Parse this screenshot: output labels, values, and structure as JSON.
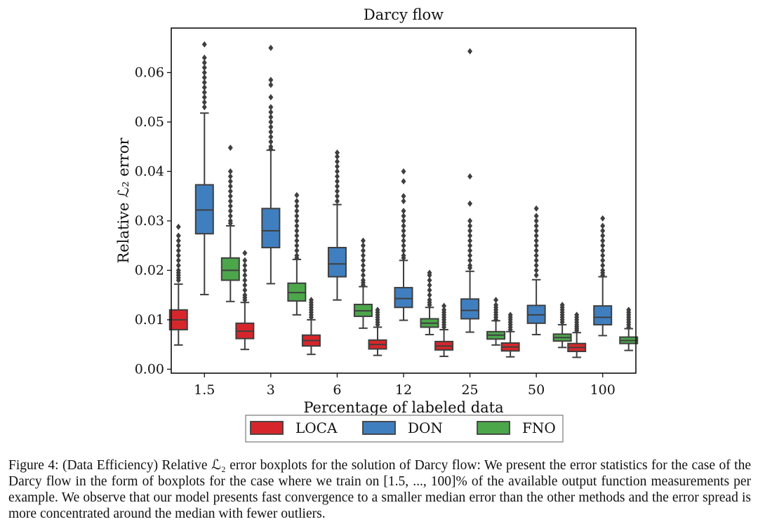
{
  "chart_data": {
    "type": "boxplot",
    "title": "Darcy flow",
    "xlabel": "Percentage of labeled data",
    "ylabel": "Relative ℒ₂ error",
    "ylim": [
      -0.0008,
      0.069
    ],
    "yticks": [
      "0.00",
      "0.01",
      "0.02",
      "0.03",
      "0.04",
      "0.05",
      "0.06"
    ],
    "ytick_values": [
      0.0,
      0.01,
      0.02,
      0.03,
      0.04,
      0.05,
      0.06
    ],
    "categories": [
      "1.5",
      "3",
      "6",
      "12",
      "25",
      "50",
      "100"
    ],
    "legend_position": "bottom-center",
    "series": [
      {
        "name": "LOCA",
        "color": "#d7262b",
        "boxes": [
          {
            "whislo": 0.0049,
            "q1": 0.008,
            "med": 0.01,
            "q3": 0.012,
            "whishi": 0.0172,
            "fliers": [
              0.018,
              0.0185,
              0.019,
              0.0195,
              0.02,
              0.021,
              0.022,
              0.023,
              0.024,
              0.025,
              0.026,
              0.027,
              0.0288
            ]
          },
          {
            "whislo": 0.004,
            "q1": 0.0062,
            "med": 0.0077,
            "q3": 0.0093,
            "whishi": 0.0135,
            "fliers": [
              0.014,
              0.0145,
              0.015,
              0.016,
              0.017,
              0.018,
              0.019,
              0.02,
              0.021,
              0.022,
              0.0235
            ]
          },
          {
            "whislo": 0.003,
            "q1": 0.0047,
            "med": 0.0058,
            "q3": 0.0069,
            "whishi": 0.01,
            "fliers": [
              0.0105,
              0.011,
              0.0115,
              0.012,
              0.0125,
              0.013,
              0.0135,
              0.014
            ]
          },
          {
            "whislo": 0.0028,
            "q1": 0.0041,
            "med": 0.005,
            "q3": 0.0059,
            "whishi": 0.0085,
            "fliers": [
              0.009,
              0.0095,
              0.01,
              0.0105,
              0.011,
              0.0115,
              0.012
            ]
          },
          {
            "whislo": 0.0026,
            "q1": 0.0039,
            "med": 0.0047,
            "q3": 0.0056,
            "whishi": 0.008,
            "fliers": [
              0.0085,
              0.009,
              0.0095,
              0.01,
              0.0105,
              0.011,
              0.0115,
              0.012,
              0.0128
            ]
          },
          {
            "whislo": 0.0025,
            "q1": 0.0037,
            "med": 0.0045,
            "q3": 0.0053,
            "whishi": 0.0076,
            "fliers": [
              0.008,
              0.0085,
              0.009,
              0.0095,
              0.01,
              0.0105,
              0.011
            ]
          },
          {
            "whislo": 0.0024,
            "q1": 0.0036,
            "med": 0.0044,
            "q3": 0.0052,
            "whishi": 0.0074,
            "fliers": [
              0.0078,
              0.0082,
              0.0086,
              0.009,
              0.0095,
              0.01,
              0.0105,
              0.011
            ]
          }
        ]
      },
      {
        "name": "DON",
        "color": "#3f7fc0",
        "boxes": [
          {
            "whislo": 0.0151,
            "q1": 0.0274,
            "med": 0.0322,
            "q3": 0.0373,
            "whishi": 0.0518,
            "fliers": [
              0.053,
              0.054,
              0.055,
              0.056,
              0.057,
              0.058,
              0.059,
              0.06,
              0.061,
              0.062,
              0.063,
              0.0657
            ]
          },
          {
            "whislo": 0.0173,
            "q1": 0.0246,
            "med": 0.028,
            "q3": 0.0325,
            "whishi": 0.0443,
            "fliers": [
              0.0445,
              0.045,
              0.046,
              0.047,
              0.048,
              0.049,
              0.05,
              0.051,
              0.052,
              0.053,
              0.055,
              0.0575,
              0.0585,
              0.065
            ]
          },
          {
            "whislo": 0.014,
            "q1": 0.0187,
            "med": 0.0213,
            "q3": 0.0246,
            "whishi": 0.0333,
            "fliers": [
              0.034,
              0.035,
              0.036,
              0.037,
              0.038,
              0.039,
              0.04,
              0.041,
              0.042,
              0.043,
              0.0438
            ]
          },
          {
            "whislo": 0.0099,
            "q1": 0.0125,
            "med": 0.0143,
            "q3": 0.0165,
            "whishi": 0.022,
            "fliers": [
              0.0225,
              0.023,
              0.024,
              0.025,
              0.026,
              0.027,
              0.028,
              0.029,
              0.03,
              0.031,
              0.032,
              0.034,
              0.035,
              0.038,
              0.04
            ]
          },
          {
            "whislo": 0.0075,
            "q1": 0.0102,
            "med": 0.0119,
            "q3": 0.0142,
            "whishi": 0.0198,
            "fliers": [
              0.0205,
              0.021,
              0.022,
              0.023,
              0.024,
              0.025,
              0.026,
              0.027,
              0.028,
              0.029,
              0.03,
              0.0335,
              0.039,
              0.0643
            ]
          },
          {
            "whislo": 0.007,
            "q1": 0.0093,
            "med": 0.011,
            "q3": 0.0129,
            "whishi": 0.0181,
            "fliers": [
              0.019,
              0.02,
              0.021,
              0.022,
              0.023,
              0.024,
              0.025,
              0.026,
              0.027,
              0.028,
              0.029,
              0.03,
              0.031,
              0.0325
            ]
          },
          {
            "whislo": 0.0068,
            "q1": 0.009,
            "med": 0.0105,
            "q3": 0.0128,
            "whishi": 0.0187,
            "fliers": [
              0.019,
              0.0195,
              0.02,
              0.021,
              0.022,
              0.023,
              0.024,
              0.025,
              0.026,
              0.027,
              0.028,
              0.029,
              0.0305
            ]
          }
        ]
      },
      {
        "name": "FNO",
        "color": "#4ca64a",
        "boxes": [
          {
            "whislo": 0.0137,
            "q1": 0.018,
            "med": 0.02,
            "q3": 0.0225,
            "whishi": 0.029,
            "fliers": [
              0.0295,
              0.03,
              0.031,
              0.032,
              0.033,
              0.034,
              0.035,
              0.036,
              0.037,
              0.038,
              0.039,
              0.04,
              0.0448
            ]
          },
          {
            "whislo": 0.011,
            "q1": 0.0138,
            "med": 0.0155,
            "q3": 0.0174,
            "whishi": 0.0222,
            "fliers": [
              0.0225,
              0.023,
              0.024,
              0.025,
              0.026,
              0.027,
              0.028,
              0.029,
              0.03,
              0.031,
              0.032,
              0.033,
              0.034,
              0.0352
            ]
          },
          {
            "whislo": 0.0083,
            "q1": 0.0107,
            "med": 0.0118,
            "q3": 0.0131,
            "whishi": 0.0167,
            "fliers": [
              0.017,
              0.0175,
              0.018,
              0.019,
              0.02,
              0.021,
              0.022,
              0.023,
              0.024,
              0.025,
              0.026
            ]
          },
          {
            "whislo": 0.007,
            "q1": 0.0085,
            "med": 0.0093,
            "q3": 0.0102,
            "whishi": 0.0125,
            "fliers": [
              0.013,
              0.0135,
              0.014,
              0.015,
              0.016,
              0.017,
              0.018,
              0.019,
              0.0195
            ]
          },
          {
            "whislo": 0.0049,
            "q1": 0.0061,
            "med": 0.0069,
            "q3": 0.0076,
            "whishi": 0.0098,
            "fliers": [
              0.01,
              0.0105,
              0.011,
              0.0115,
              0.012,
              0.0125,
              0.013,
              0.014
            ]
          },
          {
            "whislo": 0.0044,
            "q1": 0.0057,
            "med": 0.0064,
            "q3": 0.0071,
            "whishi": 0.009,
            "fliers": [
              0.0095,
              0.01,
              0.0105,
              0.011,
              0.0115,
              0.012,
              0.0125,
              0.013
            ]
          },
          {
            "whislo": 0.0038,
            "q1": 0.0052,
            "med": 0.0058,
            "q3": 0.0065,
            "whishi": 0.0082,
            "fliers": [
              0.0085,
              0.009,
              0.0095,
              0.01,
              0.0105,
              0.011,
              0.0115,
              0.012
            ]
          }
        ]
      }
    ]
  },
  "caption": {
    "lines": [
      "Figure 4:  (Data Efficiency) Relative ℒ₂ error boxplots for the solution of Darcy flow: We present the error statistics for",
      "the case of the Darcy flow in the form of boxplots for the case where we train on [1.5, ..., 100]% of the available output",
      "function measurements per example. We observe that our model presents fast convergence to a smaller median error",
      "than the other methods and the error spread is more concentrated around the median with fewer outliers."
    ]
  }
}
